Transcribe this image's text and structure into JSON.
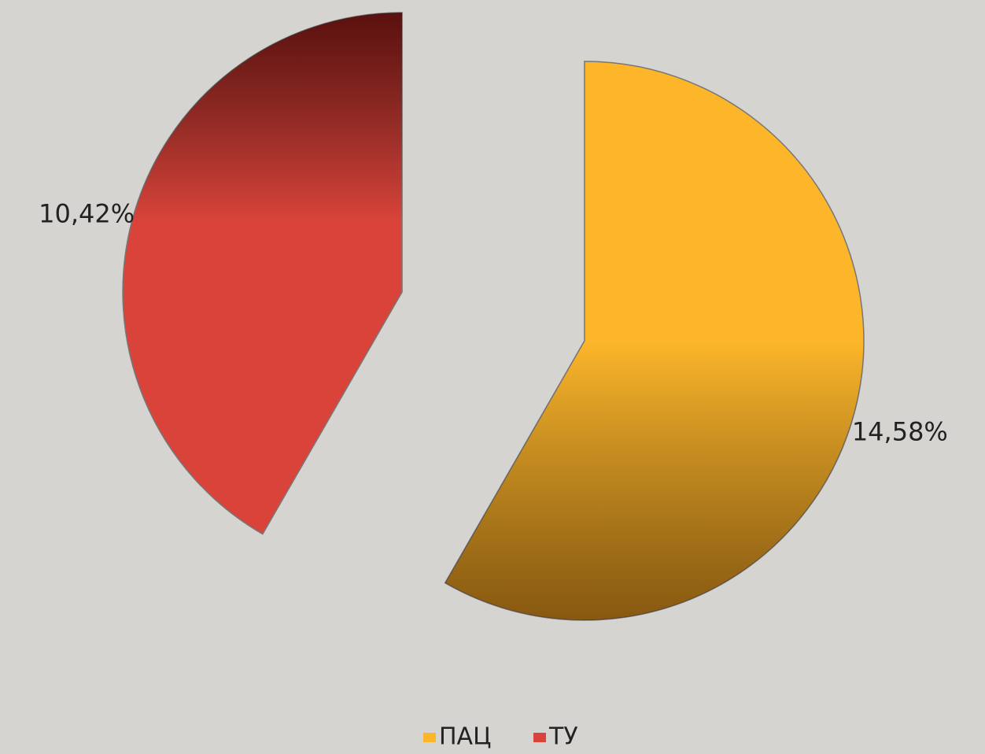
{
  "chart_data": {
    "type": "pie",
    "categories": [
      "ПАЦ",
      "ТУ"
    ],
    "values": [
      14.58,
      10.42
    ],
    "value_labels": [
      "14,58%",
      "10,42%"
    ],
    "colors": [
      "#fdb62a",
      "#d9433a"
    ],
    "exploded": true,
    "legend": "bottom"
  }
}
